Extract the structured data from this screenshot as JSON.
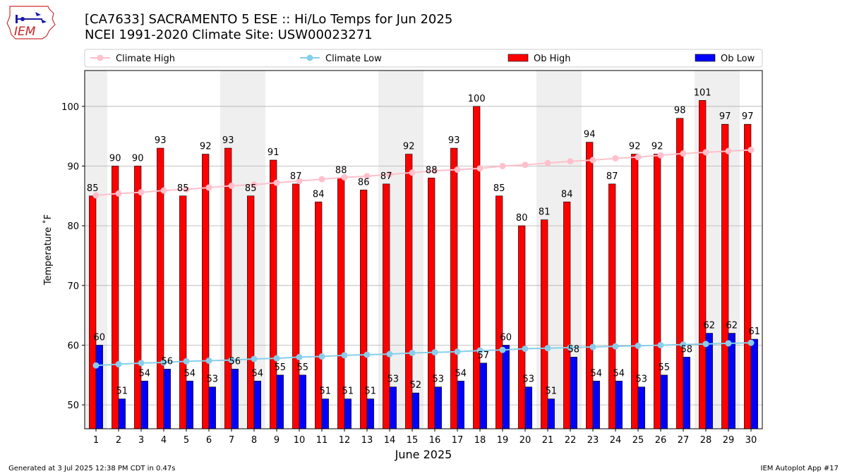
{
  "header": {
    "title_line1": "[CA7633] SACRAMENTO 5 ESE :: Hi/Lo Temps for Jun 2025",
    "title_line2": "NCEI 1991-2020 Climate Site: USW00023271"
  },
  "logo": {
    "text": "IEM"
  },
  "footer": {
    "generated": "Generated at 3 Jul 2025 12:38 PM CDT in 0.47s",
    "app": "IEM Autoplot App #17"
  },
  "colors": {
    "ob_high": "#ff0000",
    "ob_low": "#0000ff",
    "climate_high": "#ffc0cb",
    "climate_low": "#87ceeb",
    "weekend_shade": "#efefef",
    "grid": "#b0b0b0"
  },
  "chart_data": {
    "type": "bar",
    "title": "[CA7633] SACRAMENTO 5 ESE :: Hi/Lo Temps for Jun 2025",
    "subtitle": "NCEI 1991-2020 Climate Site: USW00023271",
    "xlabel": "June 2025",
    "ylabel": "Temperature ˚F",
    "ylim": [
      46,
      106
    ],
    "yticks": [
      50,
      60,
      70,
      80,
      90,
      100
    ],
    "grid": "horizontal",
    "legend_placement": "top",
    "categories": [
      "1",
      "2",
      "3",
      "4",
      "5",
      "6",
      "7",
      "8",
      "9",
      "10",
      "11",
      "12",
      "13",
      "14",
      "15",
      "16",
      "17",
      "18",
      "19",
      "20",
      "21",
      "22",
      "23",
      "24",
      "25",
      "26",
      "27",
      "28",
      "29",
      "30"
    ],
    "shaded_days": [
      1,
      7,
      8,
      14,
      15,
      21,
      22,
      28,
      29
    ],
    "series": [
      {
        "name": "Ob High",
        "kind": "bar",
        "color": "#ff0000",
        "values": [
          85,
          90,
          90,
          93,
          85,
          92,
          93,
          85,
          91,
          87,
          84,
          88,
          86,
          87,
          92,
          88,
          93,
          100,
          85,
          80,
          81,
          84,
          94,
          87,
          92,
          92,
          98,
          101,
          97,
          97
        ]
      },
      {
        "name": "Ob Low",
        "kind": "bar",
        "color": "#0000ff",
        "values": [
          60,
          51,
          54,
          56,
          54,
          53,
          56,
          54,
          55,
          55,
          51,
          51,
          51,
          53,
          52,
          53,
          54,
          57,
          60,
          53,
          51,
          58,
          54,
          54,
          53,
          55,
          58,
          62,
          62,
          61
        ]
      },
      {
        "name": "Climate High",
        "kind": "line",
        "color": "#ffc0cb",
        "values": [
          85.1,
          85.4,
          85.6,
          85.9,
          86.1,
          86.4,
          86.7,
          86.9,
          87.2,
          87.5,
          87.8,
          88.1,
          88.3,
          88.6,
          88.9,
          89.2,
          89.4,
          89.6,
          90.0,
          90.2,
          90.5,
          90.8,
          91.0,
          91.3,
          91.5,
          91.8,
          92.1,
          92.3,
          92.5,
          92.7
        ]
      },
      {
        "name": "Climate Low",
        "kind": "line",
        "color": "#87ceeb",
        "values": [
          56.6,
          56.8,
          57.0,
          57.1,
          57.3,
          57.4,
          57.5,
          57.7,
          57.8,
          58.0,
          58.1,
          58.3,
          58.4,
          58.5,
          58.7,
          58.8,
          58.9,
          59.1,
          59.2,
          59.4,
          59.5,
          59.6,
          59.7,
          59.8,
          59.9,
          60.0,
          60.1,
          60.2,
          60.3,
          60.4
        ]
      }
    ]
  }
}
